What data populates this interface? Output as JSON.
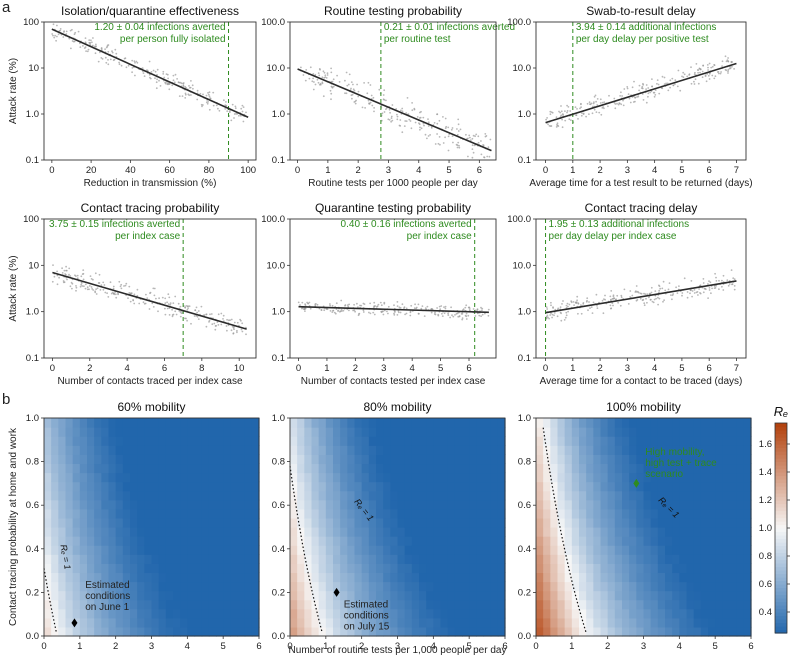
{
  "panel_labels": {
    "a": "a",
    "b": "b"
  },
  "colors": {
    "axis": "#333333",
    "line": "#2b2b2b",
    "dots": "#9a9a9a",
    "green": "#2e8b1f",
    "cold": "#2166ac",
    "white": "#f7f7f7",
    "hot": "#b2400b"
  },
  "chart_data": [
    {
      "type": "scatter",
      "title": "Isolation/quarantine effectiveness",
      "xlabel": "Reduction in transmission (%)",
      "ylabel": "Attack rate (%)",
      "yscale": "log",
      "ylim": [
        0.1,
        100
      ],
      "xlim": [
        -4,
        104
      ],
      "xticks": [
        0,
        20,
        40,
        60,
        80,
        100
      ],
      "xtick_labels": [
        "0",
        "20",
        "40",
        "60",
        "80",
        "100"
      ],
      "yticks": [
        0.1,
        1,
        10,
        100
      ],
      "ytick_labels": [
        "0.1",
        "1.0",
        "10",
        "100"
      ],
      "fit_line": {
        "x": [
          0,
          100
        ],
        "y": [
          70,
          0.85
        ]
      },
      "reference_x": 90,
      "annotation": [
        "1.20 ± 0.04 infections averted",
        "per person fully isolated"
      ],
      "annotation_align": "end",
      "spread": 0.18
    },
    {
      "type": "scatter",
      "title": "Routine testing probability",
      "xlabel": "Routine tests per 1000 people per day",
      "ylabel": "",
      "yscale": "log",
      "ylim": [
        0.1,
        100
      ],
      "xlim": [
        -0.25,
        6.55
      ],
      "xticks": [
        0,
        1,
        2,
        3,
        4,
        5,
        6
      ],
      "xtick_labels": [
        "0",
        "1",
        "2",
        "3",
        "4",
        "5",
        "6"
      ],
      "yticks": [
        0.1,
        1,
        10,
        100
      ],
      "ytick_labels": [
        "0.1",
        "1.0",
        "10.0",
        "100.0"
      ],
      "fit_line": {
        "x": [
          0,
          6.4
        ],
        "y": [
          9.5,
          0.16
        ]
      },
      "reference_x": 2.75,
      "annotation": [
        "0.21 ± 0.01 infections averted",
        "per routine test"
      ],
      "annotation_align": "start",
      "spread": 0.28
    },
    {
      "type": "scatter",
      "title": "Swab-to-result delay",
      "xlabel": "Average time for a test result to be returned (days)",
      "ylabel": "",
      "yscale": "log",
      "ylim": [
        0.1,
        100
      ],
      "xlim": [
        -0.35,
        7.35
      ],
      "xticks": [
        0,
        1,
        2,
        3,
        4,
        5,
        6,
        7
      ],
      "xtick_labels": [
        "0",
        "1",
        "2",
        "3",
        "4",
        "5",
        "6",
        "7"
      ],
      "yticks": [
        0.1,
        1,
        10,
        100
      ],
      "ytick_labels": [
        "0.1",
        "1.0",
        "10.0",
        "100.0"
      ],
      "fit_line": {
        "x": [
          0,
          7
        ],
        "y": [
          0.65,
          12.5
        ]
      },
      "reference_x": 1,
      "annotation": [
        "3.94 ± 0.14 additional infections",
        "per day delay per positive test"
      ],
      "annotation_align": "start",
      "spread": 0.2
    },
    {
      "type": "scatter",
      "title": "Contact tracing probability",
      "xlabel": "Number of contacts traced per index case",
      "ylabel": "Attack rate (%)",
      "yscale": "log",
      "ylim": [
        0.1,
        100
      ],
      "xlim": [
        -0.45,
        10.9
      ],
      "xticks": [
        0,
        2,
        4,
        6,
        8,
        10
      ],
      "xtick_labels": [
        "0",
        "2",
        "4",
        "6",
        "8",
        "10"
      ],
      "yticks": [
        0.1,
        1,
        10,
        100
      ],
      "ytick_labels": [
        "0.1",
        "1.0",
        "10",
        "100"
      ],
      "fit_line": {
        "x": [
          0,
          10.4
        ],
        "y": [
          7,
          0.42
        ]
      },
      "reference_x": 7,
      "annotation": [
        "3.75 ± 0.15 infections averted",
        "per index case"
      ],
      "annotation_align": "end",
      "spread": 0.2
    },
    {
      "type": "scatter",
      "title": "Quarantine testing probability",
      "xlabel": "Number of contacts tested per index case",
      "ylabel": "",
      "yscale": "log",
      "ylim": [
        0.1,
        100
      ],
      "xlim": [
        -0.3,
        6.95
      ],
      "xticks": [
        0,
        1,
        2,
        3,
        4,
        5,
        6
      ],
      "xtick_labels": [
        "0",
        "1",
        "2",
        "3",
        "4",
        "5",
        "6"
      ],
      "yticks": [
        0.1,
        1,
        10,
        100
      ],
      "ytick_labels": [
        "0.1",
        "1.0",
        "10.0",
        "100.0"
      ],
      "fit_line": {
        "x": [
          0,
          6.7
        ],
        "y": [
          1.28,
          0.97
        ]
      },
      "reference_x": 6.2,
      "annotation": [
        "0.40 ± 0.16 infections averted",
        "per index case"
      ],
      "annotation_align": "end",
      "spread": 0.13
    },
    {
      "type": "scatter",
      "title": "Contact tracing delay",
      "xlabel": "Average time for a contact to be traced (days)",
      "ylabel": "",
      "yscale": "log",
      "ylim": [
        0.1,
        100
      ],
      "xlim": [
        -0.35,
        7.35
      ],
      "xticks": [
        0,
        1,
        2,
        3,
        4,
        5,
        6,
        7
      ],
      "xtick_labels": [
        "0",
        "1",
        "2",
        "3",
        "4",
        "5",
        "6",
        "7"
      ],
      "yticks": [
        0.1,
        1,
        10,
        100
      ],
      "ytick_labels": [
        "0.1",
        "1.0",
        "10.0",
        "100.0"
      ],
      "fit_line": {
        "x": [
          0,
          7
        ],
        "y": [
          0.95,
          4.6
        ]
      },
      "reference_x": 0,
      "annotation": [
        "1.95 ± 0.13 additional infections",
        "per day delay per index case"
      ],
      "annotation_align": "start",
      "spread": 0.18
    },
    {
      "type": "heatmap",
      "title": "60% mobility",
      "xlabel": "",
      "ylabel": "Contact tracing probability at home and work",
      "xlim": [
        0,
        6
      ],
      "ylim": [
        0,
        1
      ],
      "xticks": [
        0,
        1,
        2,
        3,
        4,
        5,
        6
      ],
      "xtick_labels": [
        "0",
        "1",
        "2",
        "3",
        "4",
        "5",
        "6"
      ],
      "yticks": [
        0,
        0.2,
        0.4,
        0.6,
        0.8,
        1.0
      ],
      "ytick_labels": [
        "0.0",
        "0.2",
        "0.4",
        "0.6",
        "0.8",
        "1.0"
      ],
      "re_base": 1.15,
      "contour_label": "Rₑ = 1",
      "contour_label_at": {
        "x": 0.52,
        "y": 0.36
      },
      "marker": {
        "x": 0.85,
        "y": 0.06,
        "color": "#000000"
      },
      "note": [
        "Estimated",
        "conditions",
        "on June 1"
      ],
      "note_at": {
        "x": 1.15,
        "y": 0.22
      },
      "note_color": "#222222"
    },
    {
      "type": "heatmap",
      "title": "80% mobility",
      "xlabel": "Number of routine tests per 1,000 people per day",
      "ylabel": "",
      "xlim": [
        0,
        6
      ],
      "ylim": [
        0,
        1
      ],
      "xticks": [
        0,
        1,
        2,
        3,
        4,
        5,
        6
      ],
      "xtick_labels": [
        "0",
        "1",
        "2",
        "3",
        "4",
        "5",
        "6"
      ],
      "yticks": [
        0,
        0.2,
        0.4,
        0.6,
        0.8,
        1.0
      ],
      "ytick_labels": [
        "0.0",
        "0.2",
        "0.4",
        "0.6",
        "0.8",
        "1.0"
      ],
      "re_base": 1.42,
      "contour_label": "Rₑ = 1",
      "contour_label_at": {
        "x": 2.0,
        "y": 0.57
      },
      "marker": {
        "x": 1.3,
        "y": 0.2,
        "color": "#000000"
      },
      "note": [
        "Estimated",
        "conditions",
        "on July 15"
      ],
      "note_at": {
        "x": 1.5,
        "y": 0.13
      },
      "note_color": "#222222"
    },
    {
      "type": "heatmap",
      "title": "100% mobility",
      "xlabel": "",
      "ylabel": "",
      "xlim": [
        0,
        6
      ],
      "ylim": [
        0,
        1
      ],
      "xticks": [
        0,
        1,
        2,
        3,
        4,
        5,
        6
      ],
      "xtick_labels": [
        "0",
        "1",
        "2",
        "3",
        "4",
        "5",
        "6"
      ],
      "yticks": [
        0,
        0.2,
        0.4,
        0.6,
        0.8,
        1.0
      ],
      "ytick_labels": [
        "0.0",
        "0.2",
        "0.4",
        "0.6",
        "0.8",
        "1.0"
      ],
      "re_base": 1.72,
      "contour_label": "Rₑ = 1",
      "contour_label_at": {
        "x": 3.65,
        "y": 0.58
      },
      "marker": {
        "x": 2.8,
        "y": 0.7,
        "color": "#2e8b1f"
      },
      "note": [
        "High mobility,",
        "high test + trace",
        "scenario"
      ],
      "note_at": {
        "x": 3.05,
        "y": 0.83
      },
      "note_color": "#2e8b1f"
    }
  ],
  "colorbar": {
    "label": "Rₑ",
    "range": [
      0.25,
      1.75
    ],
    "ticks": [
      0.4,
      0.6,
      0.8,
      1.0,
      1.2,
      1.4,
      1.6
    ],
    "tick_labels": [
      "0.4",
      "0.6",
      "0.8",
      "1.0",
      "1.2",
      "1.4",
      "1.6"
    ]
  }
}
